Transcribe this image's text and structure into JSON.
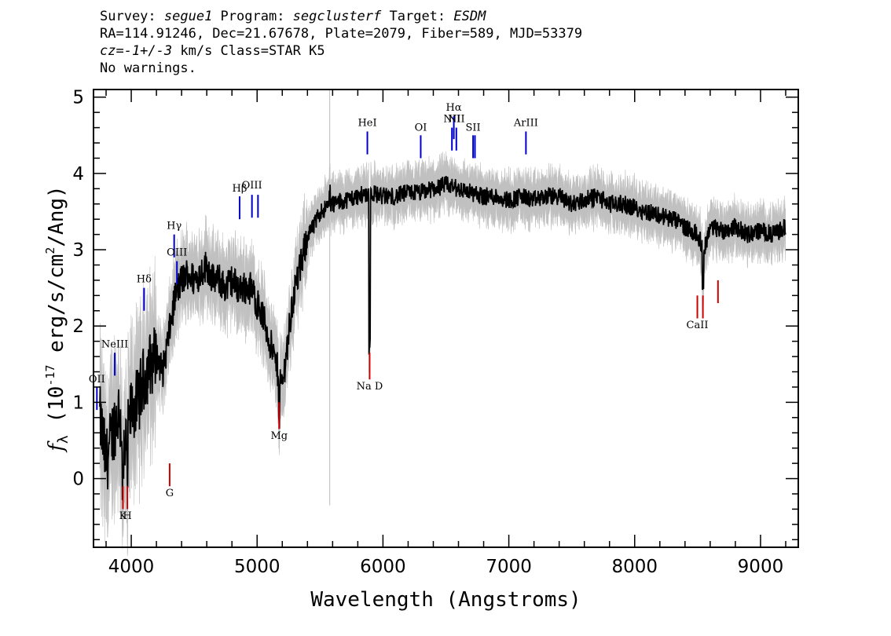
{
  "header": {
    "survey_label": "Survey: ",
    "survey": "segue1",
    "program_label": " Program: ",
    "program": "segclusterf",
    "target_label": " Target: ",
    "target": "ESDM",
    "line2": "RA=114.91246, Dec=21.67678, Plate=2079, Fiber=589, MJD=53379",
    "cz": "cz=-1+/-3",
    "cz_rest": " km/s Class=STAR K5",
    "line4": "No warnings."
  },
  "chart_data": {
    "type": "line",
    "xlabel": "Wavelength (Angstroms)",
    "ylabel": "f_λ (10^-17 erg/s/cm^2/Ang)",
    "xlim": [
      3700,
      9300
    ],
    "ylim": [
      -0.9,
      5.1
    ],
    "x_ticks": [
      4000,
      5000,
      6000,
      7000,
      8000,
      9000
    ],
    "y_ticks": [
      0,
      1,
      2,
      3,
      4,
      5
    ],
    "colors": {
      "flux": "#000000",
      "error_band": "#c0c0c0",
      "emission": "#0000cc",
      "absorption": "#cc0000",
      "sky": "#bbbbbb"
    },
    "sky_line_x": 5577,
    "series": [
      {
        "role": "flux",
        "x": [
          3750,
          3800,
          3850,
          3900,
          3950,
          4000,
          4050,
          4100,
          4150,
          4200,
          4250,
          4300,
          4350,
          4400,
          4450,
          4500,
          4550,
          4600,
          4650,
          4700,
          4750,
          4800,
          4850,
          4900,
          4950,
          5000,
          5050,
          5100,
          5150,
          5200,
          5250,
          5300,
          5350,
          5400,
          5450,
          5500,
          5600,
          5700,
          5800,
          5900,
          6000,
          6100,
          6200,
          6300,
          6400,
          6500,
          6600,
          6700,
          6800,
          6900,
          7000,
          7100,
          7200,
          7300,
          7400,
          7500,
          7600,
          7700,
          7800,
          7900,
          8000,
          8100,
          8200,
          8300,
          8400,
          8500,
          8550,
          8600,
          8700,
          8800,
          8900,
          9000,
          9100,
          9200
        ],
        "y": [
          0.8,
          0.2,
          0.6,
          0.9,
          0.3,
          0.9,
          1.0,
          1.3,
          1.5,
          1.6,
          1.4,
          1.9,
          2.4,
          2.6,
          2.7,
          2.6,
          2.7,
          2.8,
          2.6,
          2.6,
          2.5,
          2.6,
          2.5,
          2.5,
          2.5,
          2.3,
          2.1,
          1.8,
          1.5,
          1.2,
          1.9,
          2.5,
          2.8,
          3.2,
          3.3,
          3.5,
          3.6,
          3.65,
          3.7,
          3.75,
          3.7,
          3.7,
          3.75,
          3.75,
          3.8,
          3.85,
          3.8,
          3.75,
          3.7,
          3.7,
          3.65,
          3.7,
          3.65,
          3.7,
          3.7,
          3.6,
          3.65,
          3.7,
          3.6,
          3.6,
          3.55,
          3.5,
          3.45,
          3.4,
          3.3,
          3.2,
          3.0,
          3.3,
          3.25,
          3.3,
          3.2,
          3.25,
          3.2,
          3.3
        ]
      }
    ],
    "emission_lines": [
      {
        "label": "OII",
        "x": 3727,
        "top": 1.2,
        "bottom": 0.9,
        "label_y": 1.22
      },
      {
        "label": "NeIII",
        "x": 3869,
        "top": 1.65,
        "bottom": 1.35,
        "label_y": 1.68
      },
      {
        "label": "Hδ",
        "x": 4102,
        "top": 2.5,
        "bottom": 2.2,
        "label_y": 2.53
      },
      {
        "label": "Hγ",
        "x": 4341,
        "top": 3.2,
        "bottom": 2.9,
        "label_y": 3.23
      },
      {
        "label": "OIII",
        "x": 4363,
        "top": 2.85,
        "bottom": 2.55,
        "label_y": 2.88
      },
      {
        "label": "Hβ",
        "x": 4861,
        "top": 3.7,
        "bottom": 3.4,
        "label_y": 3.72
      },
      {
        "label": "OIII",
        "x": 4959,
        "top": 3.72,
        "bottom": 3.42,
        "label_y": 3.76
      },
      {
        "label": "",
        "x": 5007,
        "top": 3.72,
        "bottom": 3.42,
        "label_y": 3.76
      },
      {
        "label": "HeI",
        "x": 5876,
        "top": 4.55,
        "bottom": 4.25,
        "label_y": 4.58
      },
      {
        "label": "OI",
        "x": 6300,
        "top": 4.5,
        "bottom": 4.2,
        "label_y": 4.52
      },
      {
        "label": "NII",
        "x": 6548,
        "top": 4.6,
        "bottom": 4.3,
        "label_y": 4.63
      },
      {
        "label": "Hα",
        "x": 6563,
        "top": 4.75,
        "bottom": 4.45,
        "label_y": 4.78
      },
      {
        "label": "NII",
        "x": 6583,
        "top": 4.6,
        "bottom": 4.3,
        "label_y": 4.63
      },
      {
        "label": "SII",
        "x": 6716,
        "top": 4.5,
        "bottom": 4.2,
        "label_y": 4.52
      },
      {
        "label": "",
        "x": 6731,
        "top": 4.5,
        "bottom": 4.2,
        "label_y": 4.52
      },
      {
        "label": "ArIII",
        "x": 7136,
        "top": 4.55,
        "bottom": 4.25,
        "label_y": 4.58
      }
    ],
    "absorption_lines": [
      {
        "label": "K",
        "x": 3934,
        "top": -0.1,
        "bottom": -0.4,
        "label_y": -0.57
      },
      {
        "label": "H",
        "x": 3969,
        "top": -0.1,
        "bottom": -0.4,
        "label_y": -0.57
      },
      {
        "label": "G",
        "x": 4305,
        "top": 0.2,
        "bottom": -0.1,
        "label_y": -0.27
      },
      {
        "label": "Mg",
        "x": 5175,
        "top": 1.0,
        "bottom": 0.65,
        "label_y": 0.48
      },
      {
        "label": "Na D",
        "x": 5894,
        "top": 1.65,
        "bottom": 1.3,
        "label_y": 1.13
      },
      {
        "label": "CaII",
        "x": 8498,
        "top": 2.4,
        "bottom": 2.1,
        "label_y": 1.93
      },
      {
        "label": "",
        "x": 8542,
        "top": 2.4,
        "bottom": 2.1,
        "label_y": 1.93
      },
      {
        "label": "",
        "x": 8662,
        "top": 2.6,
        "bottom": 2.3,
        "label_y": 1.93
      }
    ]
  }
}
